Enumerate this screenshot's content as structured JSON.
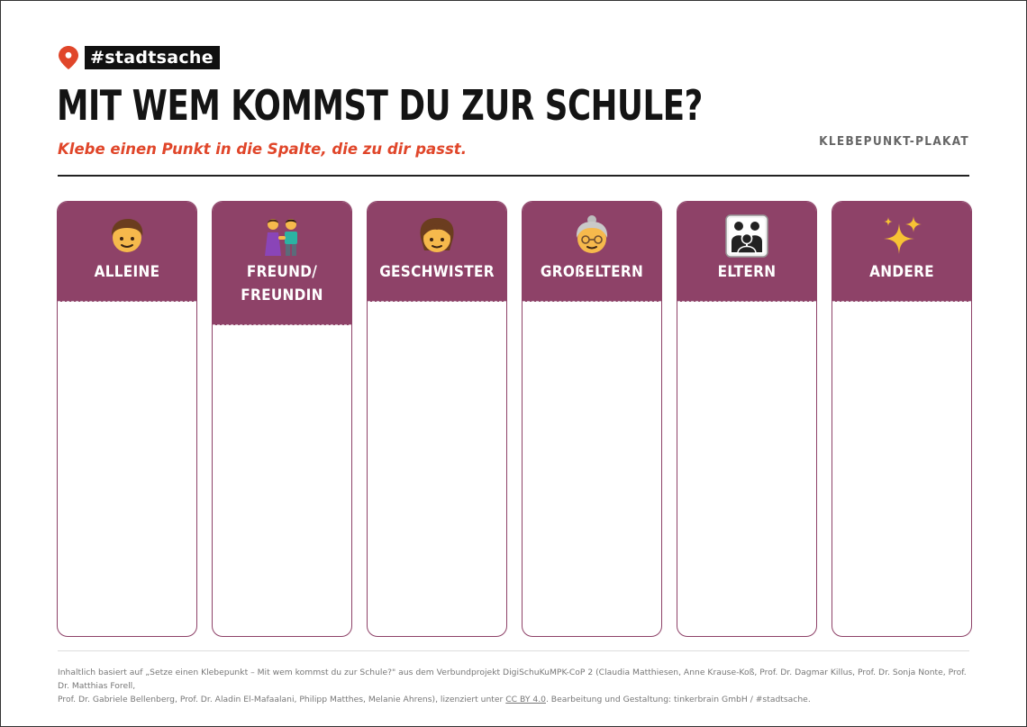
{
  "brand": {
    "tag": "#stadtsache",
    "accent": "#e0462a"
  },
  "title": "MIT WEM KOMMST DU ZUR SCHULE?",
  "subtitle": "Klebe einen Punkt in die Spalte, die zu dir passt.",
  "kind": "KLEBEPUNKT-PLAKAT",
  "column_color": "#8e4268",
  "columns": [
    {
      "label": "ALLEINE",
      "icon": "boy-icon"
    },
    {
      "label": "FREUND/\nFREUNDIN",
      "icon": "friends-icon"
    },
    {
      "label": "GESCHWISTER",
      "icon": "girl-icon"
    },
    {
      "label": "GROßELTERN",
      "icon": "grandmother-icon"
    },
    {
      "label": "ELTERN",
      "icon": "family-icon"
    },
    {
      "label": "ANDERE",
      "icon": "sparkles-icon"
    }
  ],
  "footer": {
    "line1_pre": "Inhaltlich basiert auf „Setze einen Klebepunkt – Mit wem kommst du zur Schule?\" aus dem Verbundprojekt DigiSchuKuMPK-CoP 2 (Claudia Matthiesen, Anne Krause-Koß, Prof. Dr. Dagmar Killus, Prof. Dr. Sonja Nonte, Prof. Dr. Matthias Forell,",
    "line2_pre": "Prof. Dr. Gabriele Bellenberg, Prof. Dr. Aladin El-Mafaalani, Philipp Matthes, Melanie Ahrens), lizenziert unter ",
    "license": "CC BY 4.0",
    "line2_post": ". Bearbeitung und Gestaltung: tinkerbrain GmbH / #stadtsache."
  }
}
